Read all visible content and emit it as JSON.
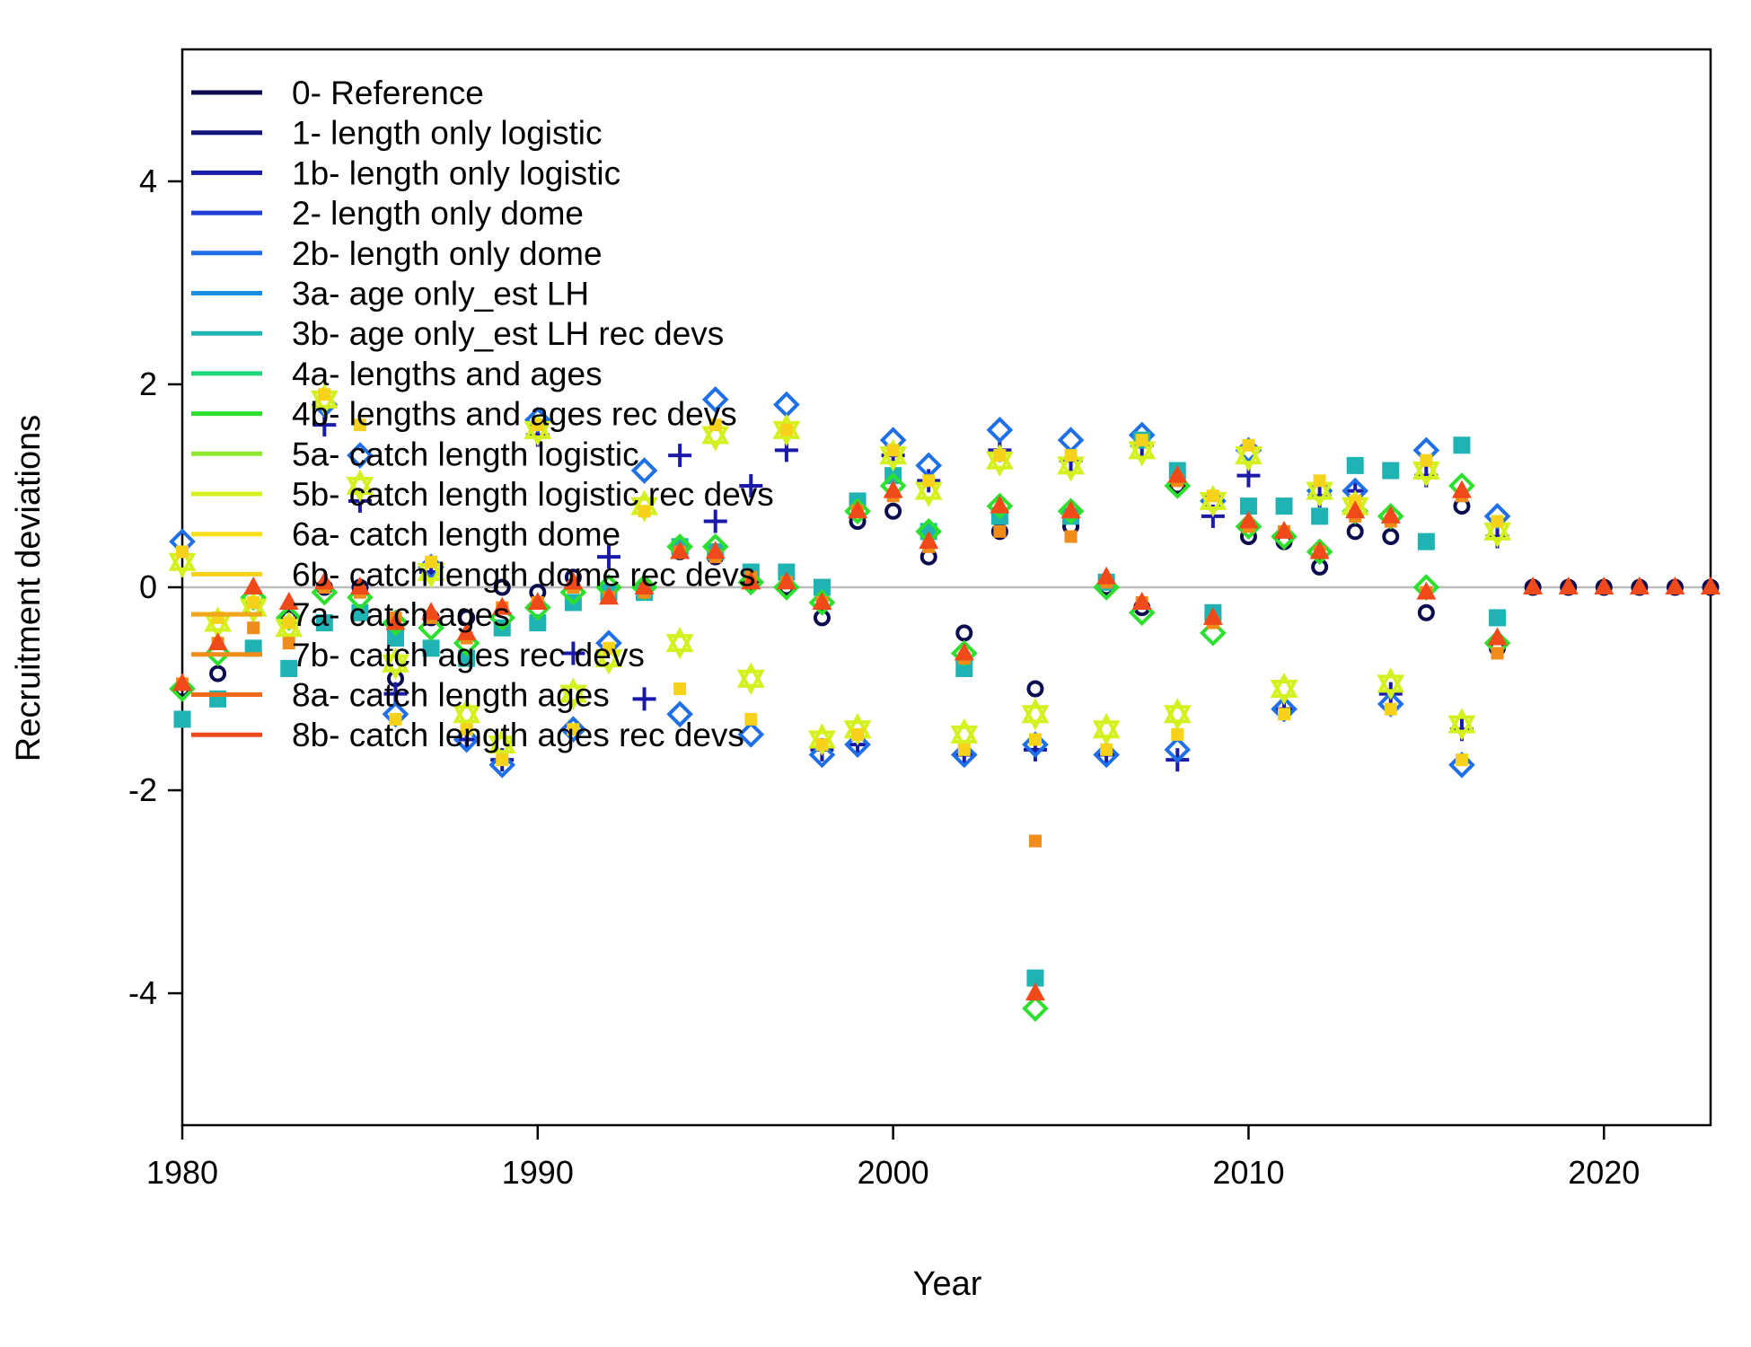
{
  "chart_data": {
    "type": "scatter",
    "xlabel": "Year",
    "ylabel": "Recruitment deviations",
    "xlim": [
      1980,
      2023
    ],
    "ylim": [
      -5.3,
      5.3
    ],
    "x_ticks": [
      1980,
      1990,
      2000,
      2010,
      2020
    ],
    "y_ticks": [
      -4,
      -2,
      0,
      2,
      4
    ],
    "grid": false,
    "reference_line": {
      "y": 0,
      "color": "#bdbdbd"
    },
    "legend": {
      "position": "top-left"
    },
    "series": [
      {
        "name": "0- Reference",
        "color": "#0b0b4f",
        "marker": "circle",
        "x": [
          1980,
          1981,
          1982,
          1983,
          1984,
          1985,
          1986,
          1987,
          1988,
          1989,
          1990,
          1991,
          1992,
          1993,
          1994,
          1995,
          1996,
          1997,
          1998,
          1999,
          2000,
          2001,
          2002,
          2003,
          2004,
          2005,
          2006,
          2007,
          2008,
          2009,
          2010,
          2011,
          2012,
          2013,
          2014,
          2015,
          2016,
          2017,
          2018,
          2019,
          2020,
          2021,
          2022,
          2023
        ],
        "y": [
          -1.0,
          -0.85,
          -0.2,
          -0.3,
          0.0,
          0.0,
          -0.9,
          -0.3,
          -0.3,
          0.0,
          -0.05,
          0.1,
          -0.05,
          0.0,
          0.35,
          0.3,
          0.05,
          0.0,
          -0.3,
          0.65,
          0.75,
          0.3,
          -0.45,
          0.55,
          -1.0,
          0.6,
          0.0,
          -0.2,
          1.0,
          -0.3,
          0.5,
          0.45,
          0.2,
          0.55,
          0.5,
          -0.25,
          0.8,
          -0.6,
          0,
          0,
          0,
          0,
          0,
          0
        ]
      },
      {
        "name": "1- length only logistic",
        "color": "#13137a",
        "marker": "none",
        "x": [],
        "y": []
      },
      {
        "name": "1b- length only logistic",
        "color": "#1a1aa8",
        "marker": "plus",
        "x": [
          1984,
          1985,
          1986,
          1987,
          1988,
          1989,
          1990,
          1991,
          1992,
          1993,
          1994,
          1995,
          1996,
          1997,
          1998,
          1999,
          2000,
          2001,
          2002,
          2003,
          2004,
          2005,
          2006,
          2007,
          2008,
          2009,
          2010,
          2011,
          2012,
          2013,
          2014,
          2015,
          2016,
          2017
        ],
        "y": [
          1.6,
          0.85,
          -1.05,
          0.15,
          -1.5,
          -1.7,
          1.5,
          -0.65,
          0.3,
          -1.1,
          1.3,
          0.65,
          1.0,
          1.35,
          -1.6,
          -1.55,
          1.3,
          1.05,
          -1.65,
          1.35,
          -1.6,
          1.25,
          -1.65,
          1.4,
          -1.7,
          0.7,
          1.1,
          -1.2,
          0.9,
          0.95,
          -1.05,
          1.1,
          -1.4,
          0.5
        ]
      },
      {
        "name": "2- length only dome",
        "color": "#1f3fd6",
        "marker": "none",
        "x": [],
        "y": []
      },
      {
        "name": "2b- length only dome",
        "color": "#1f6fe8",
        "marker": "diamond",
        "x": [
          1980,
          1984,
          1985,
          1986,
          1987,
          1988,
          1989,
          1990,
          1991,
          1992,
          1993,
          1994,
          1995,
          1996,
          1997,
          1998,
          1999,
          2000,
          2001,
          2002,
          2003,
          2004,
          2005,
          2006,
          2007,
          2008,
          2009,
          2010,
          2011,
          2012,
          2013,
          2014,
          2015,
          2016,
          2017
        ],
        "y": [
          0.45,
          1.8,
          1.3,
          -1.25,
          0.2,
          -1.5,
          -1.75,
          1.65,
          -1.4,
          -0.55,
          1.15,
          -1.25,
          1.85,
          -1.45,
          1.8,
          -1.65,
          -1.55,
          1.45,
          1.2,
          -1.65,
          1.55,
          -1.55,
          1.45,
          -1.65,
          1.5,
          -1.6,
          0.85,
          1.35,
          -1.2,
          0.95,
          0.95,
          -1.15,
          1.35,
          -1.75,
          0.7
        ]
      },
      {
        "name": "3a- age only_est LH",
        "color": "#1a8ee0",
        "marker": "none",
        "x": [],
        "y": []
      },
      {
        "name": "3b- age only_est LH rec devs",
        "color": "#1fb3b3",
        "marker": "square",
        "x": [
          1980,
          1981,
          1982,
          1983,
          1984,
          1985,
          1986,
          1987,
          1988,
          1989,
          1990,
          1991,
          1992,
          1993,
          1994,
          1995,
          1996,
          1997,
          1998,
          1999,
          2000,
          2001,
          2002,
          2003,
          2004,
          2005,
          2006,
          2007,
          2008,
          2009,
          2010,
          2011,
          2012,
          2013,
          2014,
          2015,
          2016,
          2017
        ],
        "y": [
          -1.3,
          -1.1,
          -0.6,
          -0.8,
          -0.35,
          -0.25,
          -0.5,
          -0.6,
          -0.7,
          -0.4,
          -0.35,
          -0.15,
          -0.05,
          -0.05,
          0.4,
          0.35,
          0.15,
          0.15,
          0.0,
          0.85,
          1.1,
          0.55,
          -0.8,
          0.7,
          -3.85,
          0.7,
          0.05,
          1.45,
          1.15,
          -0.25,
          0.8,
          0.8,
          0.7,
          1.2,
          1.15,
          0.45,
          1.4,
          -0.3
        ]
      },
      {
        "name": "4a- lengths and ages",
        "color": "#1fd67a",
        "marker": "none",
        "x": [],
        "y": []
      },
      {
        "name": "4b- lengths and ages rec devs",
        "color": "#2de02d",
        "marker": "diamond",
        "x": [
          1980,
          1981,
          1982,
          1983,
          1984,
          1985,
          1986,
          1987,
          1988,
          1989,
          1990,
          1991,
          1992,
          1993,
          1994,
          1995,
          1996,
          1997,
          1998,
          1999,
          2000,
          2001,
          2002,
          2003,
          2004,
          2005,
          2006,
          2007,
          2008,
          2009,
          2010,
          2011,
          2012,
          2013,
          2014,
          2015,
          2016,
          2017
        ],
        "y": [
          -1.0,
          -0.65,
          -0.1,
          -0.3,
          -0.05,
          -0.1,
          -0.35,
          -0.4,
          -0.55,
          -0.3,
          -0.2,
          -0.05,
          0.0,
          0.0,
          0.4,
          0.4,
          0.05,
          0.0,
          -0.15,
          0.75,
          1.0,
          0.55,
          -0.65,
          0.8,
          -4.15,
          0.75,
          0.0,
          -0.25,
          1.0,
          -0.45,
          0.6,
          0.5,
          0.35,
          0.75,
          0.7,
          0.0,
          1.0,
          -0.55
        ]
      },
      {
        "name": "5a- catch length logistic",
        "color": "#8ee82d",
        "marker": "none",
        "x": [],
        "y": []
      },
      {
        "name": "5b- catch length logistic rec devs",
        "color": "#d4f01f",
        "marker": "star",
        "x": [
          1980,
          1981,
          1982,
          1983,
          1984,
          1985,
          1986,
          1987,
          1988,
          1989,
          1990,
          1991,
          1992,
          1993,
          1994,
          1995,
          1996,
          1997,
          1998,
          1999,
          2000,
          2001,
          2002,
          2003,
          2004,
          2005,
          2006,
          2007,
          2008,
          2009,
          2010,
          2011,
          2012,
          2013,
          2014,
          2015,
          2016,
          2017
        ],
        "y": [
          0.25,
          -0.35,
          -0.2,
          -0.4,
          1.85,
          1.0,
          -0.75,
          0.15,
          -1.25,
          -1.55,
          1.55,
          -1.05,
          -0.7,
          0.8,
          -0.55,
          1.5,
          -0.9,
          1.55,
          -1.5,
          -1.4,
          1.3,
          0.95,
          -1.45,
          1.25,
          -1.25,
          1.2,
          -1.4,
          1.35,
          -1.25,
          0.85,
          1.3,
          -1.0,
          0.95,
          0.8,
          -0.95,
          1.15,
          -1.35,
          0.55
        ]
      },
      {
        "name": "6a- catch length dome",
        "color": "#f7e01a",
        "marker": "none",
        "x": [],
        "y": []
      },
      {
        "name": "6b- catch length dome rec devs",
        "color": "#f7d21a",
        "marker": "smallsquare",
        "x": [
          1980,
          1981,
          1982,
          1983,
          1984,
          1985,
          1986,
          1987,
          1988,
          1989,
          1990,
          1991,
          1992,
          1993,
          1994,
          1995,
          1996,
          1997,
          1998,
          1999,
          2000,
          2001,
          2002,
          2003,
          2004,
          2005,
          2006,
          2007,
          2008,
          2009,
          2010,
          2011,
          2012,
          2013,
          2014,
          2015,
          2016,
          2017
        ],
        "y": [
          0.35,
          -0.3,
          -0.15,
          -0.35,
          1.9,
          1.6,
          -1.3,
          0.25,
          -1.4,
          -1.7,
          1.6,
          -1.4,
          -0.6,
          0.75,
          -1.0,
          1.6,
          -1.3,
          1.55,
          -1.55,
          -1.45,
          1.35,
          1.05,
          -1.6,
          1.3,
          -1.5,
          1.3,
          -1.6,
          1.45,
          -1.45,
          0.9,
          1.4,
          -1.25,
          1.05,
          0.85,
          -1.2,
          1.25,
          -1.7,
          0.65
        ]
      },
      {
        "name": "7a- catch ages",
        "color": "#f0a81a",
        "marker": "none",
        "x": [],
        "y": []
      },
      {
        "name": "7b- catch ages rec devs",
        "color": "#f08c1a",
        "marker": "smallsquare",
        "x": [
          1980,
          1981,
          1982,
          1983,
          1984,
          1985,
          1986,
          1987,
          1988,
          1989,
          1990,
          1991,
          1992,
          1993,
          1994,
          1995,
          1996,
          1997,
          1998,
          1999,
          2000,
          2001,
          2002,
          2003,
          2004,
          2005,
          2006,
          2007,
          2008,
          2009,
          2010,
          2011,
          2012,
          2013,
          2014,
          2015,
          2016,
          2017
        ],
        "y": [
          -0.95,
          -0.55,
          -0.4,
          -0.55,
          0.0,
          -0.05,
          -0.3,
          -0.3,
          -0.5,
          -0.2,
          -0.15,
          0.0,
          -0.1,
          -0.05,
          0.35,
          0.3,
          0.1,
          0.05,
          -0.15,
          0.75,
          0.9,
          0.4,
          -0.7,
          0.55,
          -2.5,
          0.5,
          0.05,
          -0.15,
          1.05,
          -0.35,
          0.6,
          0.55,
          0.35,
          0.7,
          0.65,
          -0.05,
          0.9,
          -0.65
        ]
      },
      {
        "name": "8a- catch length ages",
        "color": "#f06a1a",
        "marker": "none",
        "x": [],
        "y": []
      },
      {
        "name": "8b- catch length ages rec devs",
        "color": "#f04a1a",
        "marker": "triangle",
        "x": [
          1980,
          1981,
          1982,
          1983,
          1984,
          1985,
          1986,
          1987,
          1988,
          1989,
          1990,
          1991,
          1992,
          1993,
          1994,
          1995,
          1996,
          1997,
          1998,
          1999,
          2000,
          2001,
          2002,
          2003,
          2004,
          2005,
          2006,
          2007,
          2008,
          2009,
          2010,
          2011,
          2012,
          2013,
          2014,
          2015,
          2016,
          2017,
          2018,
          2019,
          2020,
          2021,
          2022,
          2023
        ],
        "y": [
          -0.95,
          -0.55,
          0.0,
          -0.15,
          0.05,
          0.0,
          -0.35,
          -0.25,
          -0.45,
          -0.2,
          -0.15,
          0.05,
          -0.1,
          0.0,
          0.35,
          0.35,
          0.05,
          0.05,
          -0.15,
          0.75,
          0.95,
          0.45,
          -0.65,
          0.8,
          -4.0,
          0.75,
          0.1,
          -0.15,
          1.1,
          -0.3,
          0.65,
          0.55,
          0.35,
          0.75,
          0.7,
          -0.05,
          0.95,
          -0.5,
          0,
          0,
          0,
          0,
          0,
          0
        ]
      }
    ]
  }
}
